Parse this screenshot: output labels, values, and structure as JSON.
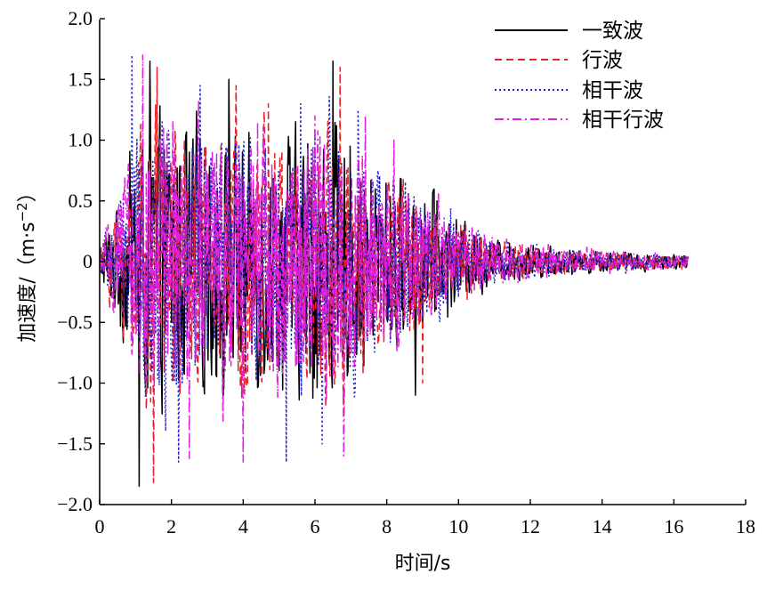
{
  "chart_data": {
    "type": "line",
    "title": "",
    "xlabel": "时间/s",
    "ylabel": "加速度/（m·s",
    "ylabel_exponent": "−2",
    "ylabel_close": "）",
    "xlim": [
      0,
      18
    ],
    "ylim": [
      -2.0,
      2.0
    ],
    "x_ticks": [
      0,
      2,
      4,
      6,
      8,
      10,
      12,
      14,
      16,
      18
    ],
    "x_tick_labels": [
      "0",
      "2",
      "4",
      "6",
      "8",
      "10",
      "12",
      "14",
      "16",
      "18"
    ],
    "y_ticks": [
      2.0,
      1.5,
      1.0,
      0.5,
      0,
      -0.5,
      -1.0,
      -1.5,
      -2.0
    ],
    "y_tick_labels": [
      "2.0",
      "1.5",
      "1.0",
      "0.5",
      "0",
      "−0.5",
      "−1.0",
      "−1.5",
      "−2.0"
    ],
    "grid": false,
    "legend_position": "top-right",
    "duration": 16.4,
    "series": [
      {
        "name": "一致波",
        "color": "#000000",
        "dash": "solid",
        "peaks": [
          [
            1.1,
            -1.85
          ],
          [
            1.4,
            1.65
          ],
          [
            3.6,
            1.5
          ],
          [
            6.5,
            1.65
          ],
          [
            8.8,
            -1.1
          ],
          [
            9.4,
            0.5
          ]
        ],
        "envelope": [
          [
            0,
            0.15
          ],
          [
            0.6,
            0.7
          ],
          [
            1.0,
            1.0
          ],
          [
            1.5,
            1.4
          ],
          [
            3.0,
            1.1
          ],
          [
            4.0,
            1.2
          ],
          [
            6.5,
            1.3
          ],
          [
            7.5,
            0.9
          ],
          [
            9.0,
            0.7
          ],
          [
            10.0,
            0.4
          ],
          [
            11.0,
            0.2
          ],
          [
            13.0,
            0.12
          ],
          [
            16.4,
            0.06
          ]
        ]
      },
      {
        "name": "行波",
        "color": "#e8202a",
        "dash": "dashed",
        "peaks": [
          [
            1.5,
            -1.82
          ],
          [
            1.6,
            1.6
          ],
          [
            3.8,
            1.45
          ],
          [
            6.7,
            1.6
          ],
          [
            4.7,
            1.3
          ],
          [
            9.0,
            -1.0
          ]
        ],
        "envelope": [
          [
            0,
            0.12
          ],
          [
            0.6,
            0.65
          ],
          [
            1.0,
            1.0
          ],
          [
            1.5,
            1.4
          ],
          [
            3.0,
            1.1
          ],
          [
            4.0,
            1.2
          ],
          [
            6.5,
            1.3
          ],
          [
            7.5,
            0.9
          ],
          [
            9.0,
            0.7
          ],
          [
            10.0,
            0.4
          ],
          [
            11.0,
            0.2
          ],
          [
            13.0,
            0.12
          ],
          [
            16.4,
            0.06
          ]
        ]
      },
      {
        "name": "相干波",
        "color": "#2020cc",
        "dash": "dotted",
        "peaks": [
          [
            0.9,
            1.7
          ],
          [
            2.2,
            -1.65
          ],
          [
            2.8,
            1.45
          ],
          [
            5.2,
            -1.65
          ],
          [
            5.6,
            1.3
          ],
          [
            6.2,
            -1.5
          ],
          [
            7.2,
            1.25
          ]
        ],
        "envelope": [
          [
            0,
            0.12
          ],
          [
            0.6,
            0.7
          ],
          [
            1.0,
            1.1
          ],
          [
            1.5,
            1.3
          ],
          [
            3.0,
            1.2
          ],
          [
            4.0,
            1.1
          ],
          [
            6.5,
            1.25
          ],
          [
            7.5,
            0.95
          ],
          [
            9.0,
            0.65
          ],
          [
            10.0,
            0.4
          ],
          [
            11.0,
            0.2
          ],
          [
            13.0,
            0.12
          ],
          [
            16.4,
            0.06
          ]
        ]
      },
      {
        "name": "相干行波",
        "color": "#e020e0",
        "dash": "dashdot",
        "peaks": [
          [
            1.2,
            1.7
          ],
          [
            2.5,
            -1.62
          ],
          [
            4.0,
            -1.65
          ],
          [
            6.0,
            1.2
          ],
          [
            6.8,
            -1.6
          ],
          [
            7.4,
            1.2
          ],
          [
            8.2,
            1.0
          ]
        ],
        "envelope": [
          [
            0,
            0.1
          ],
          [
            0.6,
            0.7
          ],
          [
            1.0,
            1.1
          ],
          [
            1.5,
            1.3
          ],
          [
            3.0,
            1.2
          ],
          [
            4.0,
            1.2
          ],
          [
            6.5,
            1.25
          ],
          [
            7.5,
            0.95
          ],
          [
            9.0,
            0.6
          ],
          [
            10.0,
            0.4
          ],
          [
            11.0,
            0.22
          ],
          [
            13.0,
            0.12
          ],
          [
            16.4,
            0.06
          ]
        ]
      }
    ]
  }
}
